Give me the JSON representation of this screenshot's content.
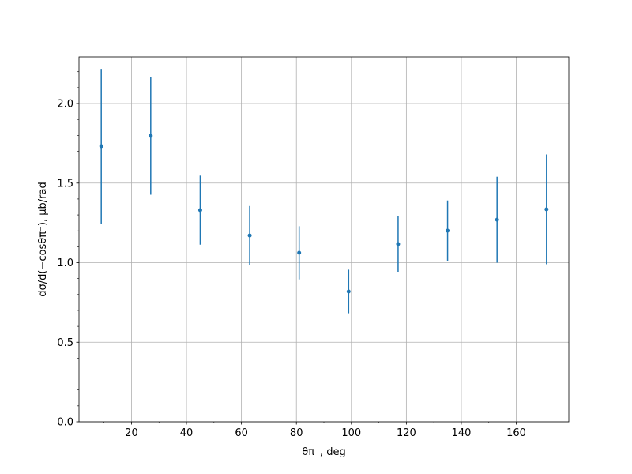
{
  "chart_data": {
    "type": "errorbar",
    "x_label": "θπ⁻, deg",
    "y_label": "dσ/d(−cosθπ⁻), μb/rad",
    "x": [
      9,
      27,
      45,
      63,
      81,
      99,
      117,
      135,
      153,
      171
    ],
    "values": [
      1.732,
      1.797,
      1.33,
      1.171,
      1.062,
      0.819,
      1.117,
      1.201,
      1.27,
      1.335
    ],
    "errors": [
      0.486,
      0.37,
      0.217,
      0.185,
      0.167,
      0.137,
      0.174,
      0.19,
      0.27,
      0.345
    ],
    "color": "#1f77b4",
    "xlim": [
      0.9,
      179.1
    ],
    "ylim": [
      0,
      2.293
    ],
    "xticks": [
      20,
      40,
      60,
      80,
      100,
      120,
      140,
      160
    ],
    "yticks": [
      {
        "value": 0,
        "label": "0.0"
      },
      {
        "value": 0.5,
        "label": "0.5"
      },
      {
        "value": 1,
        "label": "1.0"
      },
      {
        "value": 1.5,
        "label": "1.5"
      },
      {
        "value": 2,
        "label": "2.0"
      }
    ],
    "xticks_minor": [
      10,
      30,
      50,
      70,
      90,
      110,
      130,
      150,
      170
    ],
    "yticks_minor": [
      0.1,
      0.2,
      0.3,
      0.4,
      0.6,
      0.7,
      0.8,
      0.9,
      1.1,
      1.2,
      1.3,
      1.4,
      1.6,
      1.7,
      1.8,
      1.9,
      2.1,
      2.2
    ],
    "grid": true
  }
}
